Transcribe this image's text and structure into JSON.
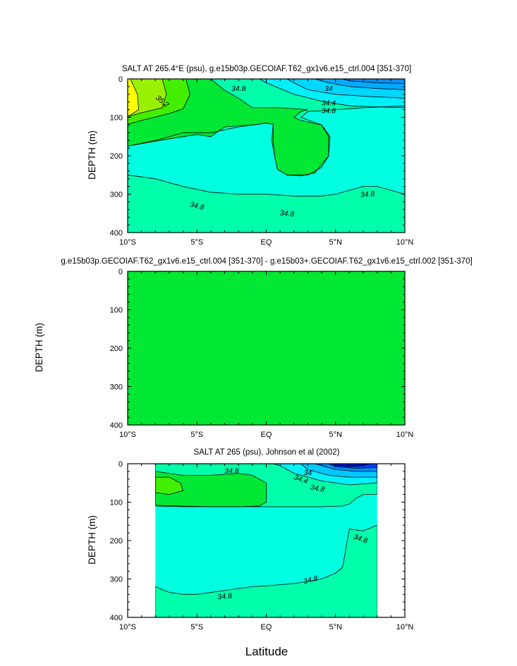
{
  "x_axis_label": "Latitude",
  "chart_data": [
    {
      "type": "contour",
      "title": "SALT AT 265.4°E (psu), g.e15b03p.GECOIAF.T62_gx1v6.e15_ctrl.004 [351-370]",
      "ylabel": "DEPTH (m)",
      "xlabel": "",
      "xlim": [
        -10,
        10
      ],
      "ylim": [
        0,
        400
      ],
      "y_inverted": true,
      "x_ticks": [
        -10,
        -5,
        0,
        5,
        10
      ],
      "x_tick_labels": [
        "10°S",
        "5°S",
        "EQ",
        "5°N",
        "10°N"
      ],
      "y_ticks": [
        0,
        100,
        200,
        300,
        400
      ],
      "y_tick_labels": [
        "0",
        "100",
        "200",
        "300",
        "400"
      ],
      "background_color": "#00FFE0",
      "regions": [
        {
          "level": 34.8,
          "color": "#00FFAA",
          "upper": [
            [
              -10,
              175
            ],
            [
              -8,
              160
            ],
            [
              -6,
              140
            ],
            [
              -4,
              140
            ],
            [
              -2,
              125
            ],
            [
              -1,
              120
            ],
            [
              0,
              115
            ],
            [
              0.5,
              118
            ],
            [
              0.5,
              160
            ],
            [
              0.6,
              200
            ],
            [
              0.8,
              235
            ],
            [
              1.5,
              250
            ],
            [
              3,
              250
            ],
            [
              4,
              230
            ],
            [
              4.5,
              200
            ],
            [
              4.5,
              150
            ],
            [
              4,
              120
            ],
            [
              2.5,
              100
            ],
            [
              3,
              85
            ],
            [
              5,
              80
            ],
            [
              7,
              75
            ],
            [
              10,
              70
            ],
            [
              10,
              0
            ],
            [
              -10,
              0
            ]
          ],
          "lower": [
            [
              -10,
              250
            ],
            [
              -8,
              260
            ],
            [
              -6,
              280
            ],
            [
              -4,
              295
            ],
            [
              -2,
              300
            ],
            [
              0,
              300
            ],
            [
              2,
              305
            ],
            [
              4,
              305
            ],
            [
              5,
              300
            ],
            [
              6,
              290
            ],
            [
              7,
              280
            ],
            [
              8,
              280
            ],
            [
              10,
              300
            ],
            [
              10,
              400
            ],
            [
              -10,
              400
            ]
          ]
        },
        {
          "level": 35.0,
          "color": "#00E834",
          "path": [
            [
              -10,
              0
            ],
            [
              -10,
              175
            ],
            [
              -8,
              162
            ],
            [
              -6,
              150
            ],
            [
              -5,
              145
            ],
            [
              -4,
              150
            ],
            [
              -3,
              125
            ],
            [
              -2,
              122
            ],
            [
              -1,
              120
            ],
            [
              0,
              115
            ],
            [
              0.5,
              118
            ],
            [
              0.4,
              160
            ],
            [
              0.6,
              200
            ],
            [
              0.8,
              235
            ],
            [
              1.5,
              250
            ],
            [
              2.5,
              252
            ],
            [
              3.5,
              245
            ],
            [
              4.5,
              200
            ],
            [
              4.6,
              150
            ],
            [
              4,
              120
            ],
            [
              2.5,
              108
            ],
            [
              2,
              100
            ],
            [
              2.5,
              85
            ],
            [
              3,
              80
            ],
            [
              1,
              75
            ],
            [
              -1,
              75
            ],
            [
              -2,
              50
            ],
            [
              -3,
              30
            ],
            [
              -3.5,
              15
            ],
            [
              -4,
              0
            ]
          ]
        },
        {
          "level": 35.2,
          "color": "#44EE00",
          "path": [
            [
              -10,
              0
            ],
            [
              -10,
              118
            ],
            [
              -9,
              108
            ],
            [
              -7,
              90
            ],
            [
              -6,
              78
            ],
            [
              -5.5,
              40
            ],
            [
              -5.8,
              0
            ]
          ]
        },
        {
          "level": 35.4,
          "color": "#99F000",
          "path": [
            [
              -10,
              0
            ],
            [
              -10,
              98
            ],
            [
              -9,
              88
            ],
            [
              -7.5,
              75
            ],
            [
              -7.2,
              40
            ],
            [
              -7.5,
              0
            ]
          ]
        },
        {
          "level": 35.6,
          "color": "#FFFF00",
          "path": [
            [
              -10,
              0
            ],
            [
              -10,
              98
            ],
            [
              -9.2,
              80
            ],
            [
              -9.3,
              40
            ],
            [
              -9.8,
              0
            ]
          ]
        },
        {
          "level": 34.6,
          "color": "#00F0F8",
          "path": [
            [
              10,
              0
            ],
            [
              10,
              75
            ],
            [
              6,
              70
            ],
            [
              4,
              58
            ],
            [
              2,
              40
            ],
            [
              0,
              10
            ],
            [
              -0.5,
              0
            ]
          ]
        },
        {
          "level": 34.4,
          "color": "#00D6FF",
          "path": [
            [
              10,
              0
            ],
            [
              10,
              50
            ],
            [
              7,
              45
            ],
            [
              5,
              40
            ],
            [
              3,
              28
            ],
            [
              2,
              10
            ],
            [
              1.5,
              0
            ]
          ]
        },
        {
          "level": 34.2,
          "color": "#00AAFF",
          "path": [
            [
              10,
              0
            ],
            [
              10,
              28
            ],
            [
              8,
              25
            ],
            [
              6,
              20
            ],
            [
              4.5,
              10
            ],
            [
              3.5,
              0
            ]
          ]
        },
        {
          "level": 34.0,
          "color": "#0090FF",
          "path": [
            [
              10,
              0
            ],
            [
              10,
              12
            ],
            [
              8,
              10
            ],
            [
              6,
              5
            ],
            [
              5.5,
              0
            ]
          ]
        }
      ],
      "contour_labels": [
        {
          "text": "34.8",
          "x": -2,
          "y": 25,
          "angle": 0
        },
        {
          "text": "34",
          "x": 4.5,
          "y": 25,
          "angle": 0
        },
        {
          "text": "34.4",
          "x": 4.5,
          "y": 62,
          "angle": 0
        },
        {
          "text": "34.8",
          "x": 4.5,
          "y": 83,
          "angle": 0
        },
        {
          "text": "35.2",
          "x": -7.5,
          "y": 58,
          "angle": 40
        },
        {
          "text": "34.8",
          "x": -5,
          "y": 330,
          "angle": 15
        },
        {
          "text": "34.8",
          "x": 1.5,
          "y": 350,
          "angle": 5
        },
        {
          "text": "34.8",
          "x": 7.3,
          "y": 300,
          "angle": -5
        }
      ]
    },
    {
      "type": "contour",
      "title": "g.e15b03p.GECOIAF.T62_gx1v6.e15_ctrl.004 [351-370] - g.e15b03+.GECOIAF.T62_gx1v6.e15_ctrl.002 [351-370]",
      "ylabel": "DEPTH (m)",
      "xlabel": "",
      "xlim": [
        -10,
        10
      ],
      "ylim": [
        0,
        400
      ],
      "y_inverted": true,
      "x_ticks": [
        -10,
        -5,
        0,
        5,
        10
      ],
      "x_tick_labels": [
        "10°S",
        "5°S",
        "EQ",
        "5°N",
        "10°N"
      ],
      "y_ticks": [
        0,
        100,
        200,
        300,
        400
      ],
      "y_tick_labels": [
        "0",
        "100",
        "200",
        "300",
        "400"
      ],
      "background_color": "#00E834",
      "regions": [],
      "contour_labels": []
    },
    {
      "type": "contour",
      "title": "SALT AT 265 (psu), Johnson et al (2002)",
      "ylabel": "DEPTH (m)",
      "xlabel": "Latitude",
      "xlim": [
        -10,
        10
      ],
      "ylim": [
        0,
        400
      ],
      "y_inverted": true,
      "data_xlim": [
        -8,
        8
      ],
      "x_ticks": [
        -10,
        -5,
        0,
        5,
        10
      ],
      "x_tick_labels": [
        "10°S",
        "5°S",
        "EQ",
        "5°N",
        "10°N"
      ],
      "y_ticks": [
        0,
        100,
        200,
        300,
        400
      ],
      "y_tick_labels": [
        "0",
        "100",
        "200",
        "300",
        "400"
      ],
      "background_color": "#00FFE0",
      "regions": [
        {
          "level": 34.8,
          "color": "#00FFAA",
          "upper": [
            [
              -8,
              108
            ],
            [
              -6,
              110
            ],
            [
              -4,
              112
            ],
            [
              -2,
              112
            ],
            [
              0,
              112
            ],
            [
              2,
              112
            ],
            [
              4,
              112
            ],
            [
              5.5,
              110
            ],
            [
              6,
              105
            ],
            [
              6.5,
              90
            ],
            [
              7,
              80
            ],
            [
              8,
              80
            ],
            [
              8,
              0
            ],
            [
              -8,
              0
            ]
          ],
          "lower": [
            [
              -8,
              320
            ],
            [
              -7,
              335
            ],
            [
              -6,
              340
            ],
            [
              -5,
              340
            ],
            [
              -3,
              330
            ],
            [
              -1,
              320
            ],
            [
              0,
              318
            ],
            [
              2,
              312
            ],
            [
              4,
              300
            ],
            [
              5,
              285
            ],
            [
              5.5,
              270
            ],
            [
              6,
              170
            ],
            [
              7,
              175
            ],
            [
              8,
              160
            ],
            [
              8,
              400
            ],
            [
              -8,
              400
            ]
          ]
        },
        {
          "level": 35.0,
          "color": "#00E834",
          "path": [
            [
              -8,
              10
            ],
            [
              -8,
              110
            ],
            [
              -6,
              112
            ],
            [
              -4,
              112
            ],
            [
              -2,
              112
            ],
            [
              -0.5,
              110
            ],
            [
              0,
              100
            ],
            [
              0,
              50
            ],
            [
              -1,
              30
            ],
            [
              -2,
              25
            ],
            [
              -4,
              30
            ],
            [
              -6,
              30
            ],
            [
              -8,
              20
            ]
          ]
        },
        {
          "level": 35.2,
          "color": "#44EE00",
          "path": [
            [
              -8,
              35
            ],
            [
              -8,
              75
            ],
            [
              -7,
              80
            ],
            [
              -6,
              70
            ],
            [
              -6.2,
              50
            ],
            [
              -7,
              35
            ]
          ]
        },
        {
          "level": 34.6,
          "color": "#00F0F8",
          "path": [
            [
              8,
              0
            ],
            [
              8,
              50
            ],
            [
              6,
              55
            ],
            [
              4,
              45
            ],
            [
              2,
              25
            ],
            [
              1,
              5
            ],
            [
              0.5,
              0
            ]
          ]
        },
        {
          "level": 34.4,
          "color": "#00C8FF",
          "path": [
            [
              8,
              0
            ],
            [
              8,
              35
            ],
            [
              6,
              35
            ],
            [
              4.5,
              30
            ],
            [
              3,
              15
            ],
            [
              2.5,
              0
            ]
          ]
        },
        {
          "level": 34.2,
          "color": "#0090FF",
          "path": [
            [
              8,
              0
            ],
            [
              8,
              20
            ],
            [
              6.5,
              20
            ],
            [
              5,
              15
            ],
            [
              4,
              5
            ],
            [
              3.5,
              0
            ]
          ]
        },
        {
          "level": 34.0,
          "color": "#0040FF",
          "path": [
            [
              8,
              0
            ],
            [
              8,
              10
            ],
            [
              6.5,
              12
            ],
            [
              5,
              8
            ],
            [
              4.5,
              0
            ]
          ]
        },
        {
          "level": 33.8,
          "color": "#0010D8",
          "path": [
            [
              7.5,
              0
            ],
            [
              7,
              5
            ],
            [
              6,
              7
            ],
            [
              5,
              4
            ],
            [
              4.8,
              0
            ]
          ]
        }
      ],
      "contour_labels": [
        {
          "text": "34.8",
          "x": -2.5,
          "y": 18,
          "angle": 0
        },
        {
          "text": "34",
          "x": 3,
          "y": 23,
          "angle": 0
        },
        {
          "text": "34.4",
          "x": 2.5,
          "y": 40,
          "angle": 20
        },
        {
          "text": "34.8",
          "x": 3.7,
          "y": 64,
          "angle": 10
        },
        {
          "text": "34.8",
          "x": -3,
          "y": 345,
          "angle": -5
        },
        {
          "text": "34.8",
          "x": 3.2,
          "y": 302,
          "angle": -15
        },
        {
          "text": "34.8",
          "x": 6.8,
          "y": 195,
          "angle": 20
        }
      ]
    }
  ]
}
